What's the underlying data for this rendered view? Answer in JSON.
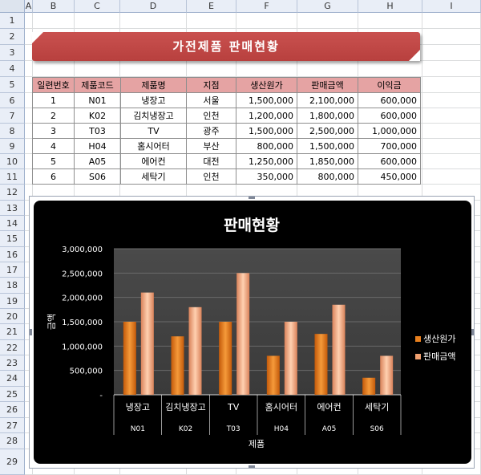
{
  "columns": [
    "A",
    "B",
    "C",
    "D",
    "E",
    "F",
    "G",
    "H",
    "I"
  ],
  "rows": [
    "1",
    "2",
    "3",
    "4",
    "5",
    "6",
    "7",
    "8",
    "9",
    "10",
    "11",
    "12",
    "13",
    "14",
    "15",
    "16",
    "17",
    "18",
    "19",
    "20",
    "21",
    "22",
    "23",
    "24",
    "25",
    "26",
    "27",
    "28",
    "29"
  ],
  "banner_title": "가전제품 판매현황",
  "table": {
    "headers": [
      "일련번호",
      "제품코드",
      "제품명",
      "지점",
      "생산원가",
      "판매금액",
      "이익금"
    ],
    "rows": [
      [
        "1",
        "N01",
        "냉장고",
        "서울",
        "1,500,000",
        "2,100,000",
        "600,000"
      ],
      [
        "2",
        "K02",
        "김치냉장고",
        "인천",
        "1,200,000",
        "1,800,000",
        "600,000"
      ],
      [
        "3",
        "T03",
        "TV",
        "광주",
        "1,500,000",
        "2,500,000",
        "1,000,000"
      ],
      [
        "4",
        "H04",
        "홈시어터",
        "부산",
        "800,000",
        "1,500,000",
        "700,000"
      ],
      [
        "5",
        "A05",
        "에어컨",
        "대전",
        "1,250,000",
        "1,850,000",
        "600,000"
      ],
      [
        "6",
        "S06",
        "세탁기",
        "인천",
        "350,000",
        "800,000",
        "450,000"
      ]
    ]
  },
  "chart_data": {
    "type": "bar",
    "title": "판매현황",
    "xlabel": "제품",
    "ylabel": "금액",
    "categories": [
      "냉장고",
      "김치냉장고",
      "TV",
      "홈시어터",
      "에어컨",
      "세탁기"
    ],
    "sub_categories": [
      "N01",
      "K02",
      "T03",
      "H04",
      "A05",
      "S06"
    ],
    "series": [
      {
        "name": "생산원가",
        "values": [
          1500000,
          1200000,
          1500000,
          800000,
          1250000,
          350000
        ],
        "color": "#e8801e"
      },
      {
        "name": "판매금액",
        "values": [
          2100000,
          1800000,
          2500000,
          1500000,
          1850000,
          800000
        ],
        "color": "#f0a070"
      }
    ],
    "ylim": [
      0,
      3000000
    ],
    "yticks": [
      "3,000,000",
      "2,500,000",
      "2,000,000",
      "1,500,000",
      "1,000,000",
      "500,000",
      "-"
    ],
    "grid": true,
    "legend": "right"
  }
}
